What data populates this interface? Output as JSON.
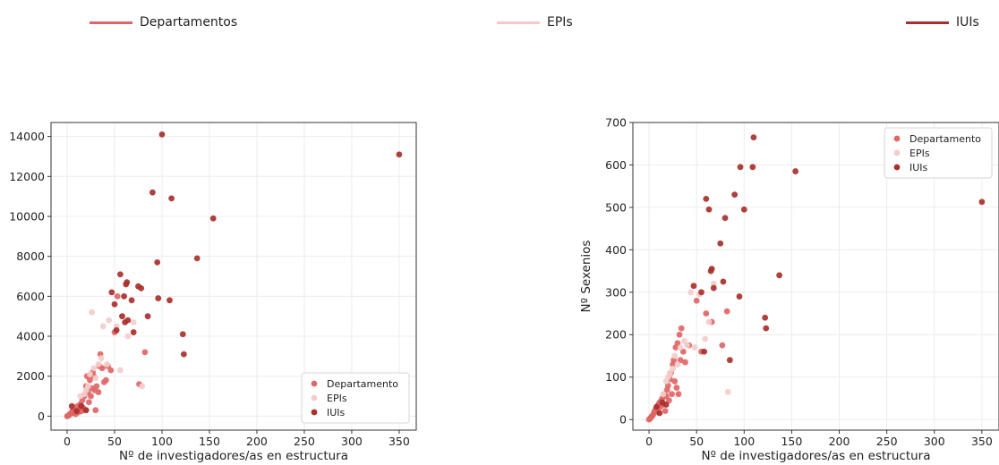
{
  "top_legend": [
    {
      "label": "Departamentos",
      "color": "#e06666"
    },
    {
      "label": "EPIs",
      "color": "#f7c6c6"
    },
    {
      "label": "IUIs",
      "color": "#a8302c"
    }
  ],
  "colors": {
    "departamento": "#e06666",
    "epis": "#f4cccc",
    "iuis": "#a8302c",
    "grid": "#ececec"
  },
  "chart_data": [
    {
      "type": "scatter",
      "xlabel": "Nº de investigadores/as en estructura",
      "ylabel": "",
      "xlim": [
        -17,
        368
      ],
      "ylim": [
        -700,
        14700
      ],
      "xticks": [
        0,
        50,
        100,
        150,
        200,
        250,
        300,
        350
      ],
      "yticks": [
        0,
        2000,
        4000,
        6000,
        8000,
        10000,
        12000,
        14000
      ],
      "grid": true,
      "legend_position": "lower-right",
      "series": [
        {
          "name": "Departamento",
          "color": "#e06666",
          "points": [
            [
              0,
              0
            ],
            [
              1,
              20
            ],
            [
              2,
              50
            ],
            [
              3,
              100
            ],
            [
              4,
              150
            ],
            [
              5,
              200
            ],
            [
              6,
              300
            ],
            [
              7,
              150
            ],
            [
              8,
              250
            ],
            [
              9,
              100
            ],
            [
              10,
              300
            ],
            [
              11,
              500
            ],
            [
              12,
              200
            ],
            [
              13,
              350
            ],
            [
              14,
              600
            ],
            [
              15,
              250
            ],
            [
              16,
              800
            ],
            [
              17,
              400
            ],
            [
              18,
              1000
            ],
            [
              19,
              300
            ],
            [
              20,
              1500
            ],
            [
              21,
              2000
            ],
            [
              22,
              1200
            ],
            [
              23,
              700
            ],
            [
              24,
              1800
            ],
            [
              25,
              1000
            ],
            [
              26,
              1400
            ],
            [
              27,
              2200
            ],
            [
              28,
              2000
            ],
            [
              29,
              1300
            ],
            [
              30,
              300
            ],
            [
              31,
              1500
            ],
            [
              33,
              1200
            ],
            [
              34,
              2500
            ],
            [
              35,
              3100
            ],
            [
              37,
              2400
            ],
            [
              39,
              1700
            ],
            [
              41,
              1800
            ],
            [
              43,
              2500
            ],
            [
              46,
              2300
            ],
            [
              50,
              4200
            ],
            [
              53,
              6000
            ],
            [
              76,
              1600
            ],
            [
              82,
              3200
            ]
          ]
        },
        {
          "name": "EPIs",
          "color": "#f4cccc",
          "points": [
            [
              14,
              1000
            ],
            [
              18,
              1100
            ],
            [
              20,
              1300
            ],
            [
              22,
              1500
            ],
            [
              24,
              2100
            ],
            [
              26,
              5200
            ],
            [
              28,
              2400
            ],
            [
              30,
              1900
            ],
            [
              33,
              2600
            ],
            [
              36,
              2900
            ],
            [
              38,
              4500
            ],
            [
              42,
              2600
            ],
            [
              44,
              4800
            ],
            [
              52,
              4500
            ],
            [
              56,
              2300
            ],
            [
              58,
              5000
            ],
            [
              64,
              4000
            ],
            [
              70,
              4700
            ],
            [
              79,
              1500
            ]
          ]
        },
        {
          "name": "IUIs",
          "color": "#a8302c",
          "points": [
            [
              5,
              500
            ],
            [
              10,
              250
            ],
            [
              15,
              500
            ],
            [
              20,
              300
            ],
            [
              47,
              6200
            ],
            [
              50,
              5600
            ],
            [
              52,
              4300
            ],
            [
              56,
              7100
            ],
            [
              58,
              5000
            ],
            [
              60,
              6000
            ],
            [
              61,
              4700
            ],
            [
              62,
              6600
            ],
            [
              63,
              6700
            ],
            [
              64,
              4800
            ],
            [
              68,
              5800
            ],
            [
              70,
              4200
            ],
            [
              75,
              6500
            ],
            [
              78,
              6400
            ],
            [
              85,
              5000
            ],
            [
              90,
              11200
            ],
            [
              95,
              7700
            ],
            [
              96,
              5900
            ],
            [
              100,
              14100
            ],
            [
              108,
              5800
            ],
            [
              110,
              10900
            ],
            [
              122,
              4100
            ],
            [
              123,
              3100
            ],
            [
              137,
              7900
            ],
            [
              154,
              9900
            ],
            [
              350,
              13100
            ]
          ]
        }
      ]
    },
    {
      "type": "scatter",
      "xlabel": "Nº de investigadores/as en estructura",
      "ylabel": "Nº Sexenios",
      "xlim": [
        -17,
        368
      ],
      "ylim": [
        -25,
        700
      ],
      "xticks": [
        0,
        50,
        100,
        150,
        200,
        250,
        300,
        350
      ],
      "yticks": [
        0,
        100,
        200,
        300,
        400,
        500,
        600,
        700
      ],
      "grid": true,
      "legend_position": "upper-right",
      "series": [
        {
          "name": "Departamento",
          "color": "#e06666",
          "points": [
            [
              0,
              0
            ],
            [
              1,
              2
            ],
            [
              2,
              5
            ],
            [
              3,
              8
            ],
            [
              4,
              10
            ],
            [
              5,
              15
            ],
            [
              6,
              20
            ],
            [
              7,
              25
            ],
            [
              8,
              30
            ],
            [
              9,
              20
            ],
            [
              10,
              35
            ],
            [
              11,
              40
            ],
            [
              12,
              30
            ],
            [
              13,
              45
            ],
            [
              14,
              50
            ],
            [
              15,
              35
            ],
            [
              16,
              60
            ],
            [
              17,
              20
            ],
            [
              18,
              55
            ],
            [
              19,
              70
            ],
            [
              20,
              80
            ],
            [
              21,
              45
            ],
            [
              22,
              95
            ],
            [
              23,
              110
            ],
            [
              24,
              60
            ],
            [
              25,
              130
            ],
            [
              26,
              140
            ],
            [
              27,
              90
            ],
            [
              28,
              170
            ],
            [
              29,
              75
            ],
            [
              30,
              180
            ],
            [
              31,
              60
            ],
            [
              32,
              200
            ],
            [
              33,
              140
            ],
            [
              34,
              215
            ],
            [
              36,
              160
            ],
            [
              38,
              135
            ],
            [
              42,
              175
            ],
            [
              50,
              280
            ],
            [
              55,
              160
            ],
            [
              60,
              250
            ],
            [
              66,
              230
            ],
            [
              77,
              175
            ],
            [
              82,
              255
            ]
          ]
        },
        {
          "name": "EPIs",
          "color": "#f4cccc",
          "points": [
            [
              15,
              60
            ],
            [
              18,
              90
            ],
            [
              20,
              100
            ],
            [
              22,
              110
            ],
            [
              25,
              120
            ],
            [
              27,
              150
            ],
            [
              30,
              130
            ],
            [
              33,
              170
            ],
            [
              37,
              185
            ],
            [
              40,
              175
            ],
            [
              44,
              300
            ],
            [
              48,
              170
            ],
            [
              53,
              295
            ],
            [
              59,
              190
            ],
            [
              63,
              230
            ],
            [
              68,
              320
            ],
            [
              83,
              65
            ]
          ]
        },
        {
          "name": "IUIs",
          "color": "#a8302c",
          "points": [
            [
              8,
              30
            ],
            [
              11,
              15
            ],
            [
              14,
              40
            ],
            [
              18,
              35
            ],
            [
              47,
              315
            ],
            [
              55,
              300
            ],
            [
              58,
              160
            ],
            [
              60,
              520
            ],
            [
              63,
              495
            ],
            [
              65,
              350
            ],
            [
              66,
              355
            ],
            [
              68,
              310
            ],
            [
              75,
              415
            ],
            [
              78,
              325
            ],
            [
              80,
              475
            ],
            [
              85,
              140
            ],
            [
              90,
              530
            ],
            [
              95,
              290
            ],
            [
              96,
              595
            ],
            [
              100,
              495
            ],
            [
              109,
              595
            ],
            [
              110,
              665
            ],
            [
              122,
              240
            ],
            [
              123,
              215
            ],
            [
              137,
              340
            ],
            [
              154,
              585
            ],
            [
              350,
              513
            ]
          ]
        }
      ]
    }
  ]
}
